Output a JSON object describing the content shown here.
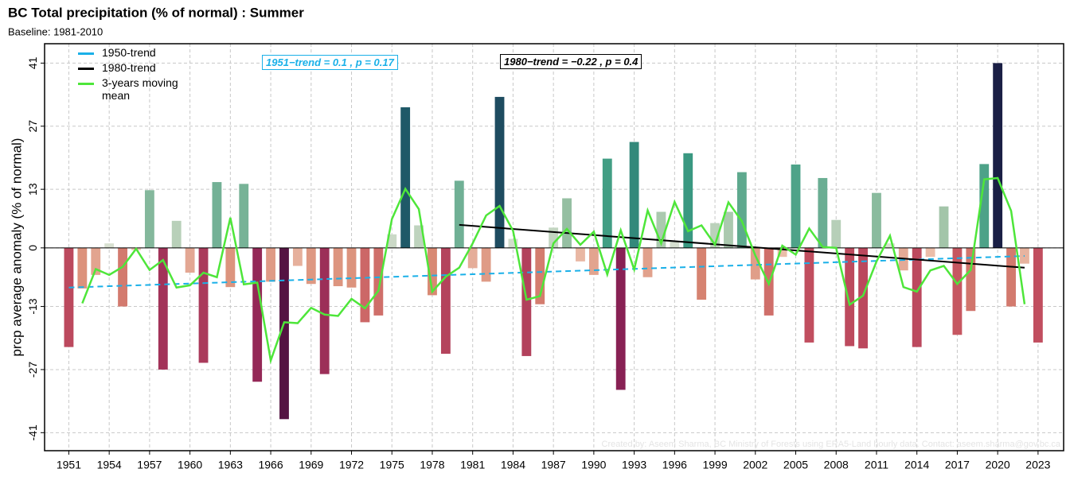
{
  "chart_data": {
    "type": "bar",
    "title": "BC Total precipitation (% of normal) : Summer",
    "subtitle": "Baseline: 1981-2010",
    "ylabel": "prcp average anomaly (% of normal)",
    "watermark": "Created by: Aseem Sharma, BC Ministry of Forests using ERA5-Land hourly data. Contact: aseem.sharma@gov.bc.ca",
    "x": [
      1951,
      1952,
      1953,
      1954,
      1955,
      1956,
      1957,
      1958,
      1959,
      1960,
      1961,
      1962,
      1963,
      1964,
      1965,
      1966,
      1967,
      1968,
      1969,
      1970,
      1971,
      1972,
      1973,
      1974,
      1975,
      1976,
      1977,
      1978,
      1979,
      1980,
      1981,
      1982,
      1983,
      1984,
      1985,
      1986,
      1987,
      1988,
      1989,
      1990,
      1991,
      1992,
      1993,
      1994,
      1995,
      1996,
      1997,
      1998,
      1999,
      2000,
      2001,
      2002,
      2003,
      2004,
      2005,
      2006,
      2007,
      2008,
      2009,
      2010,
      2011,
      2012,
      2013,
      2014,
      2015,
      2016,
      2017,
      2018,
      2019,
      2020,
      2021,
      2022,
      2023
    ],
    "values": [
      -22,
      -9,
      -6,
      1,
      -13,
      -0.5,
      12.8,
      -27,
      6,
      -5.5,
      -25.5,
      14.6,
      -8.7,
      14.2,
      -29.7,
      -7.5,
      -38,
      -4,
      -8,
      -28,
      -8.5,
      -8.8,
      -16.5,
      -15,
      3,
      31.2,
      5,
      -10.5,
      -23.5,
      14.9,
      -4.5,
      -7.5,
      33.5,
      2,
      -24,
      -12.5,
      4.5,
      11,
      -3,
      -6,
      19.8,
      -31.5,
      23.5,
      -6.5,
      8,
      1.5,
      21,
      -11.5,
      5.5,
      8,
      16.8,
      -7,
      -15,
      -2,
      18.5,
      -21,
      15.5,
      6.2,
      -21.8,
      -22.3,
      12.2,
      1,
      -5,
      -22,
      -2,
      9.2,
      -19.3,
      -14,
      18.6,
      41,
      -13,
      -3.5,
      -21
    ],
    "color_scale": {
      "positive": [
        "#dfe3d6",
        "#9cc2a4",
        "#3b9b82",
        "#1f5c6a",
        "#1a1f45"
      ],
      "negative": [
        "#efc9b6",
        "#d98a74",
        "#c4505f",
        "#8e2356",
        "#3c0c3a"
      ]
    },
    "lines": [
      {
        "name": "1950-trend",
        "color": "#1ab0e8",
        "dash": true,
        "x": [
          1951,
          2022
        ],
        "values": [
          -8.8,
          -1.8
        ]
      },
      {
        "name": "1980-trend",
        "color": "#000000",
        "dash": false,
        "x": [
          1980,
          2022
        ],
        "values": [
          5.1,
          -4.4
        ]
      },
      {
        "name": "3-years moving mean",
        "color": "#4ee63a",
        "dash": false,
        "x": [
          1952,
          1953,
          1954,
          1955,
          1956,
          1957,
          1958,
          1959,
          1960,
          1961,
          1962,
          1963,
          1964,
          1965,
          1966,
          1967,
          1968,
          1969,
          1970,
          1971,
          1972,
          1973,
          1974,
          1975,
          1976,
          1977,
          1978,
          1979,
          1980,
          1981,
          1982,
          1983,
          1984,
          1985,
          1986,
          1987,
          1988,
          1989,
          1990,
          1991,
          1992,
          1993,
          1994,
          1995,
          1996,
          1997,
          1998,
          1999,
          2000,
          2001,
          2002,
          2003,
          2004,
          2005,
          2006,
          2007,
          2008,
          2009,
          2010,
          2011,
          2012,
          2013,
          2014,
          2015,
          2016,
          2017,
          2018,
          2019,
          2020,
          2021,
          2022
        ],
        "values": [
          -12.3,
          -4.7,
          -6,
          -4.2,
          -0.2,
          -4.9,
          -2.7,
          -8.8,
          -8.3,
          -5.5,
          -6.5,
          6.7,
          -8.1,
          -7.7,
          -25,
          -16.5,
          -16.7,
          -13.3,
          -14.8,
          -15.1,
          -11.3,
          -13.4,
          -9.5,
          6.4,
          13.1,
          8.6,
          -9.7,
          -6.4,
          -4.4,
          1,
          7.2,
          9.3,
          3.8,
          -11.5,
          -10.7,
          1,
          4.2,
          0.7,
          3.6,
          -5.9,
          3.9,
          -4.8,
          8.3,
          1,
          10.2,
          3.7,
          5,
          0.7,
          10.1,
          5.9,
          -1.7,
          -8,
          0.5,
          -1.5,
          4.3,
          0.2,
          0,
          -12.6,
          -10.6,
          -3,
          2.7,
          -8.7,
          -9.7,
          -5,
          -4,
          -8,
          -4.9,
          15.2,
          15.5,
          8.2,
          -12.5
        ]
      }
    ],
    "annotations": [
      {
        "text": "1951−trend = 0.1 , p = 0.17",
        "color": "#1ab0e8"
      },
      {
        "text": "1980−trend = −0.22 , p = 0.4",
        "color": "#000000"
      }
    ],
    "xlim": [
      1949.2,
      2024.9
    ],
    "ylim": [
      -45,
      45.3
    ],
    "xticks": [
      1951,
      1954,
      1957,
      1960,
      1963,
      1966,
      1969,
      1972,
      1975,
      1978,
      1981,
      1984,
      1987,
      1990,
      1993,
      1996,
      1999,
      2002,
      2005,
      2008,
      2011,
      2014,
      2017,
      2020,
      2023
    ],
    "yticks": [
      -41,
      -27,
      -13,
      0,
      13,
      27,
      41
    ],
    "grid": true
  }
}
